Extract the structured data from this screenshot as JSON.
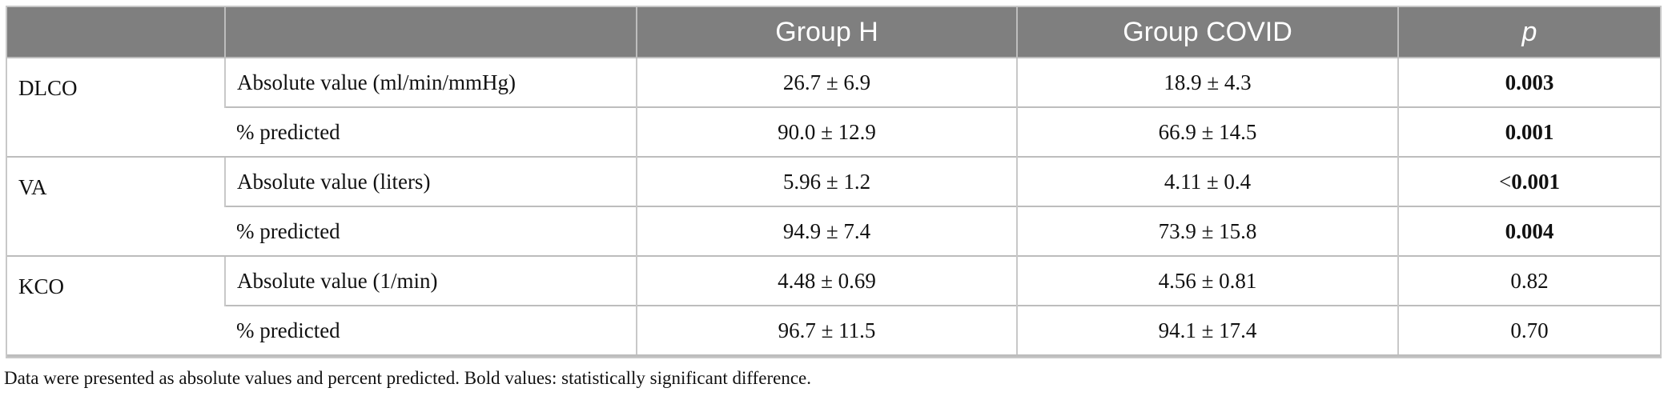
{
  "table": {
    "headers": [
      "",
      "",
      "Group H",
      "Group COVID",
      "p"
    ],
    "groups": [
      {
        "name": "DLCO",
        "rows": [
          {
            "measure": "Absolute value (ml/min/mmHg)",
            "group_h": "26.7 ± 6.9",
            "group_covid": "18.9 ± 4.3",
            "p_prefix": "",
            "p": "0.003",
            "p_bold": true
          },
          {
            "measure": "% predicted",
            "group_h": "90.0 ± 12.9",
            "group_covid": "66.9 ± 14.5",
            "p_prefix": "",
            "p": "0.001",
            "p_bold": true
          }
        ]
      },
      {
        "name": "VA",
        "rows": [
          {
            "measure": "Absolute value (liters)",
            "group_h": "5.96 ± 1.2",
            "group_covid": "4.11 ± 0.4",
            "p_prefix": "<",
            "p": "0.001",
            "p_bold": true
          },
          {
            "measure": "% predicted",
            "group_h": "94.9 ± 7.4",
            "group_covid": "73.9 ± 15.8",
            "p_prefix": "",
            "p": "0.004",
            "p_bold": true
          }
        ]
      },
      {
        "name": "KCO",
        "rows": [
          {
            "measure": "Absolute value (1/min)",
            "group_h": "4.48 ± 0.69",
            "group_covid": "4.56 ± 0.81",
            "p_prefix": "",
            "p": "0.82",
            "p_bold": false
          },
          {
            "measure": "% predicted",
            "group_h": "96.7 ± 11.5",
            "group_covid": "94.1 ± 17.4",
            "p_prefix": "",
            "p": "0.70",
            "p_bold": false
          }
        ]
      }
    ]
  },
  "footnote": "Data were presented as absolute values and percent predicted. Bold values: statistically significant difference."
}
